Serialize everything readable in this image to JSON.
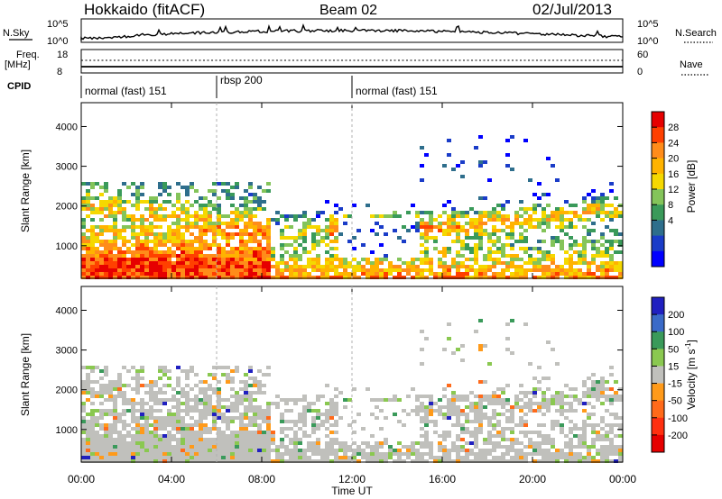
{
  "header": {
    "station": "Hokkaido (fitACF)",
    "beam": "Beam 02",
    "date": "02/Jul/2013"
  },
  "top_panels": {
    "nsky_label": "N.Sky",
    "nsky_ticks": [
      "10^5",
      "10^0"
    ],
    "nsearch_label": "N.Search",
    "nsearch_ticks": [
      "10^5",
      "10^0"
    ],
    "freq_label": "Freq.",
    "freq_unit": "[MHz]",
    "freq_ticks": [
      "18",
      "8"
    ],
    "nave_label": "Nave",
    "nave_ticks": [
      "60",
      "0"
    ],
    "cpid_label": "CPID",
    "cpid_segments": [
      {
        "label": "normal (fast) 151",
        "start_hour": 0
      },
      {
        "label": "rbsp 200",
        "start_hour": 6
      },
      {
        "label": "normal (fast) 151",
        "start_hour": 12
      }
    ]
  },
  "chart_data": [
    {
      "type": "heatmap",
      "name": "power",
      "ylabel": "Slant Range [km]",
      "yticks": [
        1000,
        2000,
        3000,
        4000
      ],
      "ylim": [
        180,
        4600
      ],
      "xlim": [
        0,
        24
      ],
      "colorbar": {
        "title": "Power [dB]",
        "ticks": [
          "28",
          "24",
          "20",
          "16",
          "12",
          "8",
          "4"
        ],
        "colors": [
          "#e60000",
          "#ff4000",
          "#ff8c1a",
          "#ffb300",
          "#f5d800",
          "#84c45a",
          "#3a9a5a",
          "#2e6e8c",
          "#1a3cc8",
          "#0000ff"
        ]
      }
    },
    {
      "type": "heatmap",
      "name": "velocity",
      "ylabel": "Slant Range [km]",
      "yticks": [
        1000,
        2000,
        3000,
        4000
      ],
      "ylim": [
        180,
        4600
      ],
      "xlim": [
        0,
        24
      ],
      "colorbar": {
        "title": "Velocity [m s",
        "title_sup": "-1",
        "title_end": "]",
        "ticks": [
          "200",
          "100",
          "50",
          "15",
          "-15",
          "-50",
          "-100",
          "-200"
        ],
        "colors": [
          "#2020c0",
          "#3a6ac8",
          "#3a9a5a",
          "#8ac850",
          "#c0c0bc",
          "#ff9a1a",
          "#ff6a1a",
          "#ff3010",
          "#e60000"
        ]
      }
    }
  ],
  "time_axis": {
    "ticks": [
      "00:00",
      "04:00",
      "08:00",
      "12:00",
      "16:00",
      "20:00",
      "00:00"
    ],
    "label": "Time UT"
  }
}
